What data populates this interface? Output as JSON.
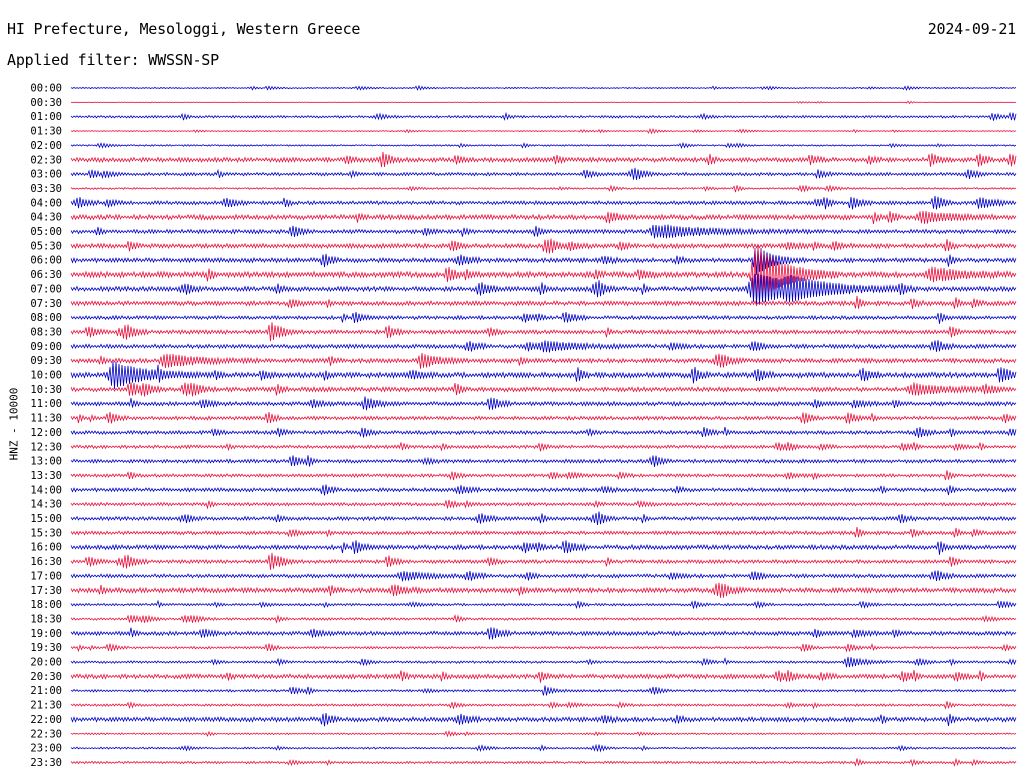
{
  "header": {
    "station": "HI Prefecture, Mesologgi, Western Greece",
    "date": "2024-09-21",
    "filter": "Applied filter: WWSSN-SP",
    "channel_label": "HNZ - 10000"
  },
  "colors": {
    "even_rows": "#0000c8",
    "odd_rows": "#e8103c"
  },
  "chart_data": {
    "type": "line",
    "subtype": "helicorder",
    "title": "HI Prefecture, Mesologgi, Western Greece",
    "ylabel": "HNZ - 10000",
    "rows": [
      "00:00",
      "00:30",
      "01:00",
      "01:30",
      "02:00",
      "02:30",
      "03:00",
      "03:30",
      "04:00",
      "04:30",
      "05:00",
      "05:30",
      "06:00",
      "06:30",
      "07:00",
      "07:30",
      "08:00",
      "08:30",
      "09:00",
      "09:30",
      "10:00",
      "10:30",
      "11:00",
      "11:30",
      "12:00",
      "12:30",
      "13:00",
      "13:30",
      "14:00",
      "14:30",
      "15:00",
      "15:30",
      "16:00",
      "16:30",
      "17:00",
      "17:30",
      "18:00",
      "18:30",
      "19:00",
      "19:30",
      "20:00",
      "20:30",
      "21:00",
      "21:30",
      "22:00",
      "22:30",
      "23:00",
      "23:30"
    ],
    "row_noise": [
      0.6,
      0.3,
      1.2,
      0.5,
      0.8,
      2.2,
      1.6,
      0.9,
      1.8,
      2.4,
      2.0,
      2.2,
      2.2,
      2.8,
      2.3,
      2.2,
      1.8,
      2.0,
      2.0,
      2.2,
      2.6,
      2.2,
      2.0,
      1.8,
      1.8,
      1.6,
      1.8,
      1.6,
      1.8,
      1.6,
      1.8,
      1.8,
      2.2,
      1.8,
      1.8,
      2.4,
      1.2,
      1.2,
      2.0,
      1.2,
      1.2,
      2.2,
      1.2,
      1.2,
      2.2,
      0.9,
      0.9,
      1.2
    ],
    "events": [
      {
        "row": 12,
        "t": 0.724,
        "amp": 14,
        "dur": 0.02
      },
      {
        "row": 13,
        "t": 0.724,
        "amp": 28,
        "dur": 0.035
      },
      {
        "row": 14,
        "t": 0.724,
        "amp": 14,
        "dur": 0.06
      },
      {
        "row": 14,
        "t": 0.76,
        "amp": 6,
        "dur": 0.05
      },
      {
        "row": 13,
        "t": 0.91,
        "amp": 6,
        "dur": 0.04
      },
      {
        "row": 20,
        "t": 0.045,
        "amp": 12,
        "dur": 0.04
      },
      {
        "row": 19,
        "t": 0.37,
        "amp": 7,
        "dur": 0.02
      },
      {
        "row": 19,
        "t": 0.1,
        "amp": 6,
        "dur": 0.04
      },
      {
        "row": 18,
        "t": 0.5,
        "amp": 5,
        "dur": 0.04
      },
      {
        "row": 21,
        "t": 0.89,
        "amp": 5,
        "dur": 0.04
      },
      {
        "row": 22,
        "t": 0.31,
        "amp": 6,
        "dur": 0.015
      },
      {
        "row": 35,
        "t": 0.34,
        "amp": 5,
        "dur": 0.015
      },
      {
        "row": 34,
        "t": 0.35,
        "amp": 4,
        "dur": 0.03
      },
      {
        "row": 9,
        "t": 0.9,
        "amp": 5,
        "dur": 0.04
      },
      {
        "row": 10,
        "t": 0.63,
        "amp": 5,
        "dur": 0.06
      },
      {
        "row": 8,
        "t": 0.96,
        "amp": 5,
        "dur": 0.02
      },
      {
        "row": 42,
        "t": 0.5,
        "amp": 5,
        "dur": 0.01
      },
      {
        "row": 40,
        "t": 0.82,
        "amp": 5,
        "dur": 0.02
      }
    ]
  }
}
